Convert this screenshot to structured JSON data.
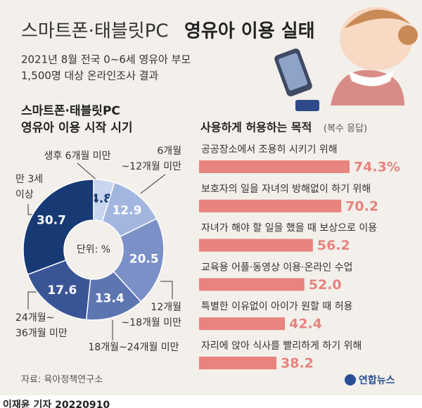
{
  "title": [
    "스마트폰·태블릿PC",
    "영유아 이용 실태"
  ],
  "subtitle": [
    "2021년 8월 전국 0~6세 영유아 부모",
    "1,500명 대상 온라인조사 결과"
  ],
  "chart_data": [
    {
      "type": "donut",
      "title": [
        "스마트폰·태블릿PC",
        "영유아 이용 시작 시기"
      ],
      "center_label": "단위: %",
      "categories": [
        [
          "생후 6개월 미만"
        ],
        [
          "6개월",
          "~12개월 미만"
        ],
        [
          "12개월",
          "~18개월 미만"
        ],
        [
          "18개월~24개월 미만"
        ],
        [
          "24개월~",
          "36개월 미만"
        ],
        [
          "만 3세",
          "이상"
        ]
      ],
      "values": [
        4.8,
        12.9,
        20.5,
        13.4,
        17.6,
        30.7
      ],
      "colors": [
        "#c9d5ee",
        "#a3b6df",
        "#7a90c6",
        "#5d76b2",
        "#3a5596",
        "#173a75"
      ]
    },
    {
      "type": "bar",
      "title": "사용하게 허용하는 목적",
      "title_note": "(복수 응답)",
      "categories": [
        "공공장소에서 조용히 시키기 위해",
        "보호자의 일을 자녀의 방해없이 하기 위해",
        "자녀가 해야 할 일을 했을 때 보상으로 이용",
        "교육용 어플·동영상 이용·온라인 수업",
        "특별한 이유없이 아이가 원할 때 허용",
        "자리에 앉아 식사를 빨리하게 하기 위해"
      ],
      "values": [
        74.3,
        70.2,
        56.2,
        52.0,
        42.4,
        38.2
      ],
      "value_labels": [
        "74.3%",
        "70.2",
        "56.2",
        "52.0",
        "42.4",
        "38.2"
      ],
      "color": "#e8837d"
    }
  ],
  "source": "자료: 육아정책연구소",
  "logo": "연합뉴스",
  "credit": "이재윤 기자  20220910"
}
